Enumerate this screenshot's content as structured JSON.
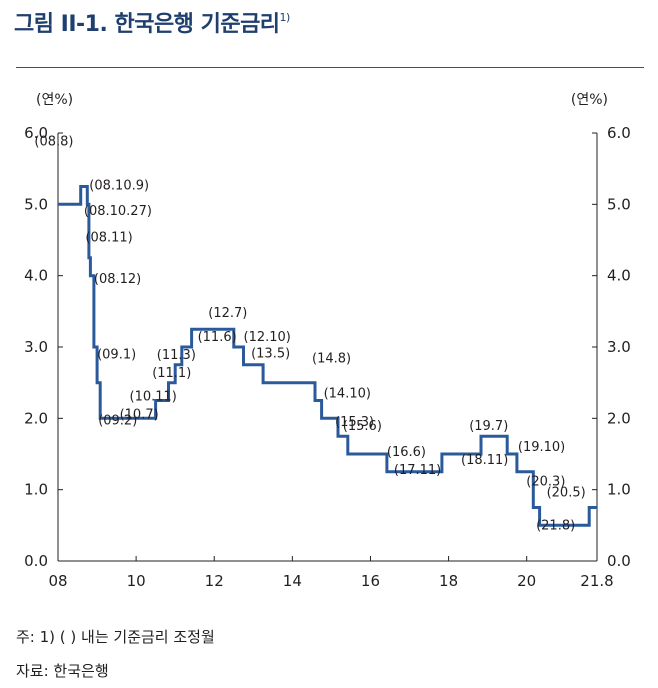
{
  "figure": {
    "title": "그림 II-1. 한국은행 기준금리",
    "title_footnote": "1)",
    "note": "주: 1) (   ) 내는 기준금리 조정월",
    "source": "자료: 한국은행"
  },
  "chart_data": {
    "type": "line",
    "step": true,
    "title": "한국은행 기준금리",
    "xlabel": "",
    "ylabel_left": "(연%)",
    "ylabel_right": "(연%)",
    "xlim": [
      2008.0,
      2021.8
    ],
    "ylim": [
      0.0,
      6.0
    ],
    "x_ticks": [
      2008,
      2010,
      2012,
      2014,
      2016,
      2018,
      2020,
      2021.8
    ],
    "x_tick_labels": [
      "08",
      "10",
      "12",
      "14",
      "16",
      "18",
      "20",
      "21.8"
    ],
    "y_ticks": [
      0.0,
      1.0,
      2.0,
      3.0,
      4.0,
      5.0,
      6.0
    ],
    "y_tick_labels": [
      "0.0",
      "1.0",
      "2.0",
      "3.0",
      "4.0",
      "5.0",
      "6.0"
    ],
    "line_color": "#2a5a9c",
    "series": [
      {
        "name": "기준금리",
        "points": [
          {
            "x": 2008.0,
            "y": 5.0
          },
          {
            "x": 2008.58,
            "y": 5.25
          },
          {
            "x": 2008.75,
            "y": 5.0
          },
          {
            "x": 2008.79,
            "y": 4.25
          },
          {
            "x": 2008.83,
            "y": 4.0
          },
          {
            "x": 2008.92,
            "y": 3.0
          },
          {
            "x": 2009.0,
            "y": 2.5
          },
          {
            "x": 2009.08,
            "y": 2.0
          },
          {
            "x": 2010.5,
            "y": 2.25
          },
          {
            "x": 2010.83,
            "y": 2.5
          },
          {
            "x": 2011.0,
            "y": 2.75
          },
          {
            "x": 2011.17,
            "y": 3.0
          },
          {
            "x": 2011.42,
            "y": 3.25
          },
          {
            "x": 2012.5,
            "y": 3.0
          },
          {
            "x": 2012.75,
            "y": 2.75
          },
          {
            "x": 2013.25,
            "y": 2.5
          },
          {
            "x": 2014.58,
            "y": 2.25
          },
          {
            "x": 2014.75,
            "y": 2.0
          },
          {
            "x": 2015.17,
            "y": 1.75
          },
          {
            "x": 2015.42,
            "y": 1.5
          },
          {
            "x": 2016.42,
            "y": 1.25
          },
          {
            "x": 2017.83,
            "y": 1.5
          },
          {
            "x": 2018.83,
            "y": 1.75
          },
          {
            "x": 2019.5,
            "y": 1.5
          },
          {
            "x": 2019.75,
            "y": 1.25
          },
          {
            "x": 2020.17,
            "y": 0.75
          },
          {
            "x": 2020.33,
            "y": 0.5
          },
          {
            "x": 2021.6,
            "y": 0.75
          },
          {
            "x": 2021.8,
            "y": 0.75
          }
        ]
      }
    ],
    "annotations": [
      {
        "text": "(08.8)",
        "x": 2008.6,
        "y": 5.25
      },
      {
        "text": "(08.10.9)",
        "x": 2008.75,
        "y": 5.0
      },
      {
        "text": "(08.10.27)",
        "x": 2008.79,
        "y": 4.25
      },
      {
        "text": "(08.11)",
        "x": 2008.83,
        "y": 4.0
      },
      {
        "text": "(08.12)",
        "x": 2008.92,
        "y": 3.0
      },
      {
        "text": "(09.1)",
        "x": 2009.0,
        "y": 2.5
      },
      {
        "text": "(09.2)",
        "x": 2009.08,
        "y": 2.0
      },
      {
        "text": "(10.7)",
        "x": 2010.5,
        "y": 2.25
      },
      {
        "text": "(10.11)",
        "x": 2010.83,
        "y": 2.5
      },
      {
        "text": "(11.1)",
        "x": 2011.0,
        "y": 2.75
      },
      {
        "text": "(11.3)",
        "x": 2011.17,
        "y": 3.0
      },
      {
        "text": "(11.6)",
        "x": 2011.42,
        "y": 3.25
      },
      {
        "text": "(12.7)",
        "x": 2012.5,
        "y": 3.0
      },
      {
        "text": "(12.10)",
        "x": 2012.75,
        "y": 2.75
      },
      {
        "text": "(13.5)",
        "x": 2013.25,
        "y": 2.5
      },
      {
        "text": "(14.8)",
        "x": 2014.58,
        "y": 2.25
      },
      {
        "text": "(14.10)",
        "x": 2014.75,
        "y": 2.0
      },
      {
        "text": "(15.3)",
        "x": 2015.17,
        "y": 1.75
      },
      {
        "text": "(15.6)",
        "x": 2015.42,
        "y": 1.5
      },
      {
        "text": "(16.6)",
        "x": 2016.42,
        "y": 1.25
      },
      {
        "text": "(17.11)",
        "x": 2017.83,
        "y": 1.5
      },
      {
        "text": "(18.11)",
        "x": 2018.83,
        "y": 1.75
      },
      {
        "text": "(19.7)",
        "x": 2019.5,
        "y": 1.5
      },
      {
        "text": "(19.10)",
        "x": 2019.75,
        "y": 1.25
      },
      {
        "text": "(20.3)",
        "x": 2020.17,
        "y": 0.75
      },
      {
        "text": "(20.5)",
        "x": 2020.33,
        "y": 0.5
      },
      {
        "text": "(21.8)",
        "x": 2021.6,
        "y": 0.75
      }
    ]
  }
}
